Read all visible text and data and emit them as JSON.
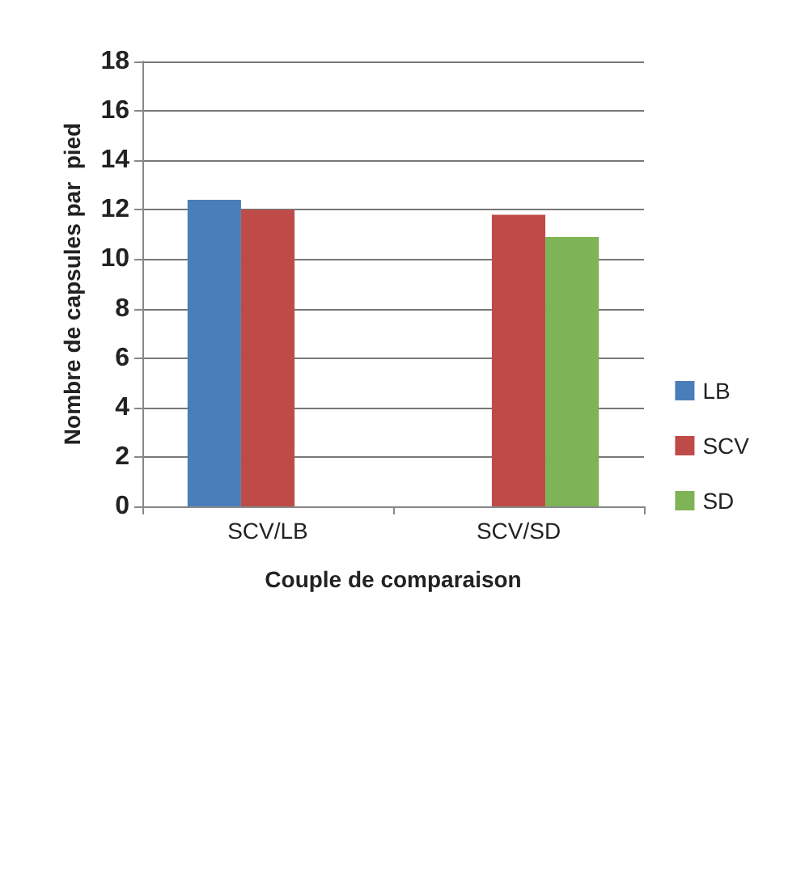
{
  "chart_data": {
    "type": "bar",
    "xlabel": "Couple de comparaison",
    "ylabel": "Nombre de capsules par  pied",
    "categories": [
      "SCV/LB",
      "SCV/SD"
    ],
    "series": [
      {
        "name": "LB",
        "color": "#4a7ebb",
        "values": [
          12.4,
          null
        ]
      },
      {
        "name": "SCV",
        "color": "#be4b48",
        "values": [
          12.0,
          11.8
        ]
      },
      {
        "name": "SD",
        "color": "#7eb356",
        "values": [
          null,
          10.9
        ]
      }
    ],
    "ylim": [
      0,
      18
    ],
    "yticks": [
      0,
      2,
      4,
      6,
      8,
      10,
      12,
      14,
      16,
      18
    ],
    "grid": "y",
    "legend": "right"
  }
}
